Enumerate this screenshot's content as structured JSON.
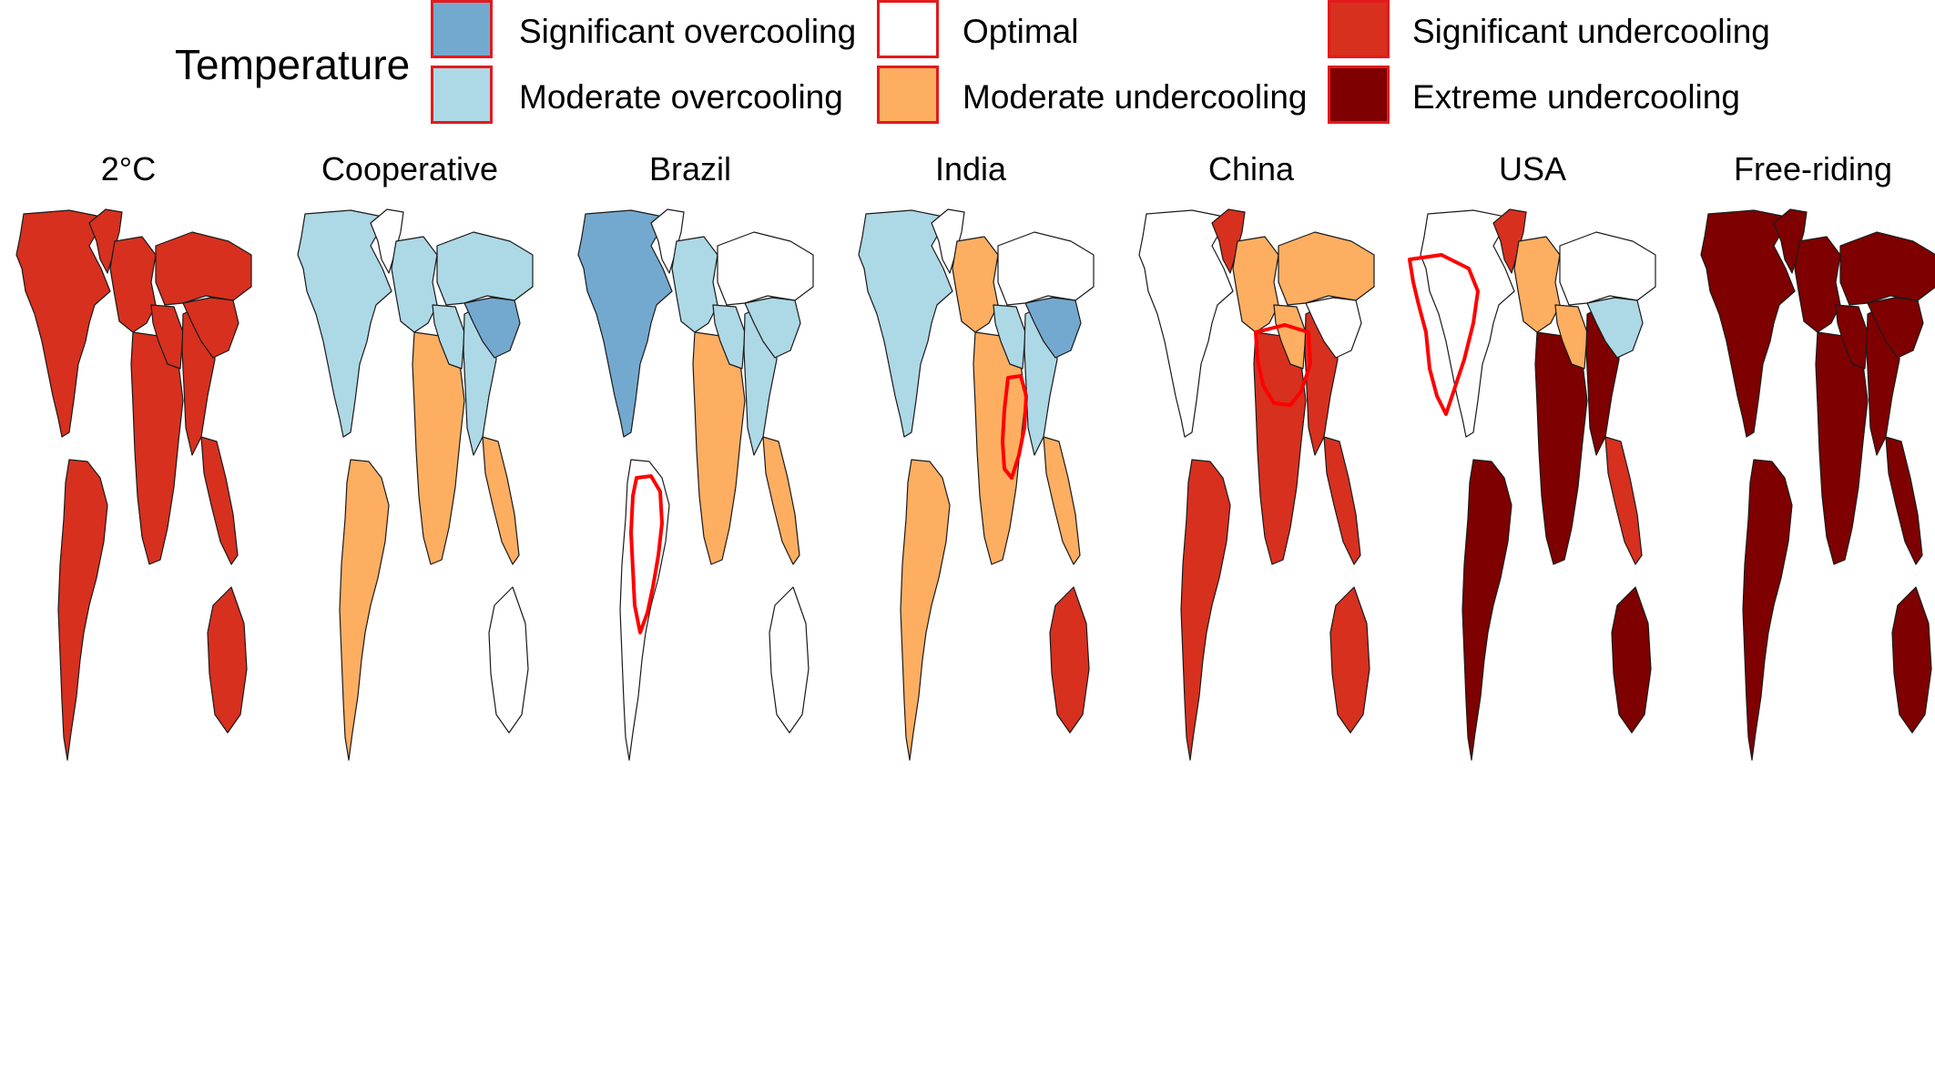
{
  "legend": {
    "title": "Temperature",
    "items": [
      {
        "key": "sig_over",
        "label": "Significant overcooling",
        "color": "#74a9cf"
      },
      {
        "key": "mod_over",
        "label": "Moderate overcooling",
        "color": "#add8e6"
      },
      {
        "key": "optimal",
        "label": "Optimal",
        "color": "#ffffff"
      },
      {
        "key": "mod_under",
        "label": "Moderate undercooling",
        "color": "#fdae61"
      },
      {
        "key": "sig_under",
        "label": "Significant undercooling",
        "color": "#d7301f"
      },
      {
        "key": "ext_under",
        "label": "Extreme undercooling",
        "color": "#7f0000"
      }
    ]
  },
  "panels": [
    {
      "title": "2°C",
      "regions": {
        "north_america": "sig_under",
        "greenland": "sig_under",
        "south_america": "sig_under",
        "europe": "sig_under",
        "africa": "sig_under",
        "russia": "sig_under",
        "middle_east": "sig_under",
        "south_asia": "sig_under",
        "china": "sig_under",
        "southeast_asia": "sig_under",
        "australia": "sig_under"
      },
      "highlight": ""
    },
    {
      "title": "Cooperative",
      "regions": {
        "north_america": "mod_over",
        "greenland": "optimal",
        "south_america": "mod_under",
        "europe": "mod_over",
        "africa": "mod_under",
        "russia": "mod_over",
        "middle_east": "mod_over",
        "south_asia": "mod_over",
        "china": "sig_over",
        "southeast_asia": "mod_under",
        "australia": "optimal"
      },
      "highlight": ""
    },
    {
      "title": "Brazil",
      "regions": {
        "north_america": "sig_over",
        "greenland": "optimal",
        "south_america": "optimal",
        "europe": "mod_over",
        "africa": "mod_under",
        "russia": "optimal",
        "middle_east": "mod_over",
        "south_asia": "mod_over",
        "china": "mod_over",
        "southeast_asia": "mod_under",
        "australia": "optimal"
      },
      "highlight": "brazil"
    },
    {
      "title": "India",
      "regions": {
        "north_america": "mod_over",
        "greenland": "optimal",
        "south_america": "mod_under",
        "europe": "mod_under",
        "africa": "mod_under",
        "russia": "optimal",
        "middle_east": "mod_over",
        "south_asia": "mod_over",
        "china": "sig_over",
        "southeast_asia": "mod_under",
        "australia": "sig_under"
      },
      "highlight": "india"
    },
    {
      "title": "China",
      "regions": {
        "north_america": "optimal",
        "greenland": "sig_under",
        "south_america": "sig_under",
        "europe": "mod_under",
        "africa": "sig_under",
        "russia": "mod_under",
        "middle_east": "mod_under",
        "south_asia": "sig_under",
        "china": "optimal",
        "southeast_asia": "sig_under",
        "australia": "sig_under"
      },
      "highlight": "china"
    },
    {
      "title": "USA",
      "regions": {
        "north_america": "optimal",
        "greenland": "sig_under",
        "south_america": "ext_under",
        "europe": "mod_under",
        "africa": "ext_under",
        "russia": "optimal",
        "middle_east": "mod_under",
        "south_asia": "ext_under",
        "china": "mod_over",
        "southeast_asia": "sig_under",
        "australia": "ext_under"
      },
      "highlight": "usa"
    },
    {
      "title": "Free-riding",
      "regions": {
        "north_america": "ext_under",
        "greenland": "ext_under",
        "south_america": "ext_under",
        "europe": "ext_under",
        "africa": "ext_under",
        "russia": "ext_under",
        "middle_east": "ext_under",
        "south_asia": "ext_under",
        "china": "ext_under",
        "southeast_asia": "ext_under",
        "australia": "ext_under"
      },
      "highlight": ""
    }
  ]
}
